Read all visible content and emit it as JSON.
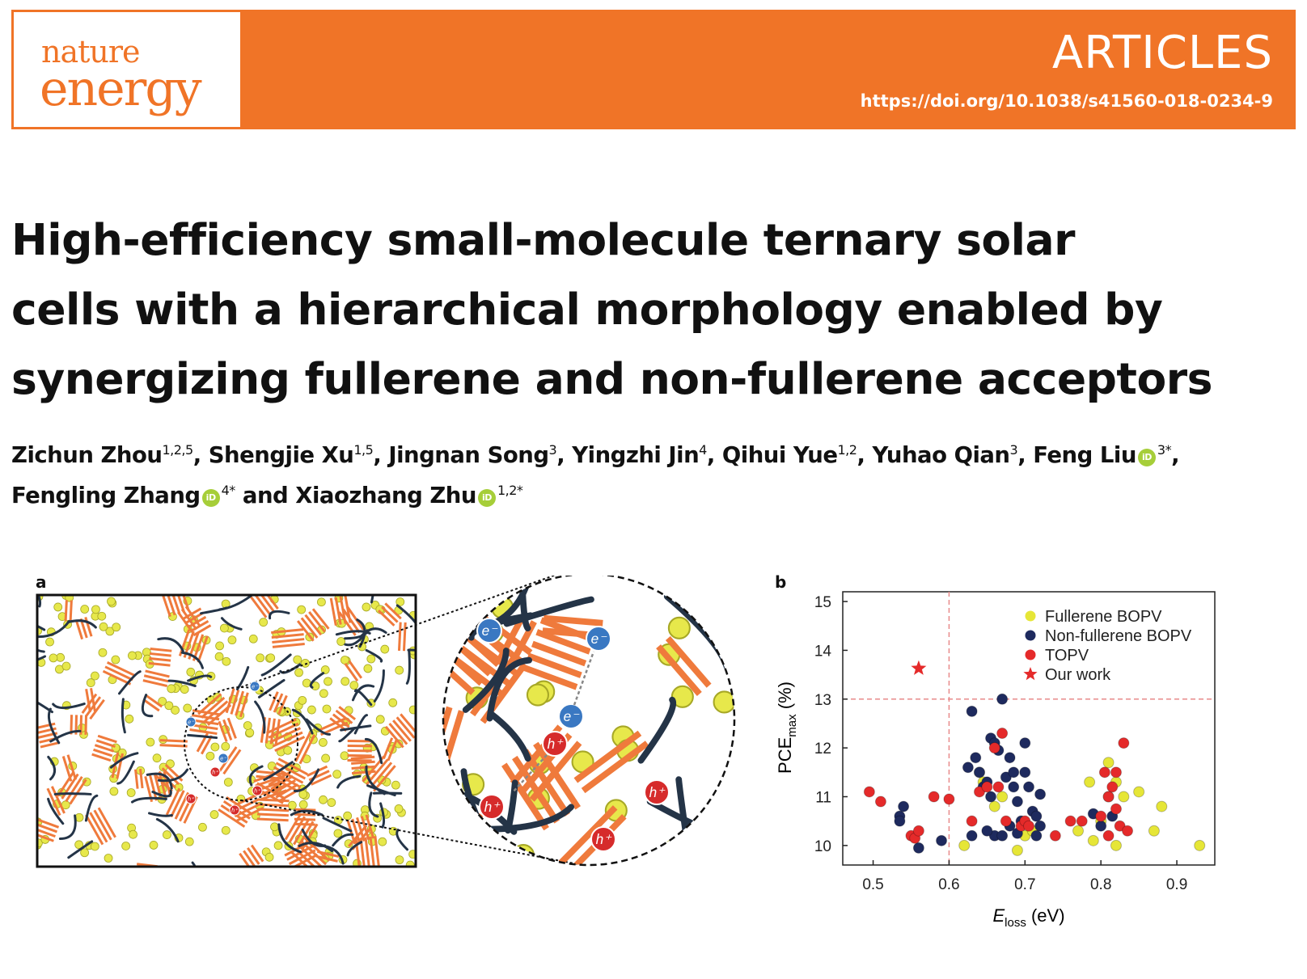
{
  "header": {
    "journal_word1": "nature",
    "journal_word2": "energy",
    "section": "ARTICLES",
    "doi": "https://doi.org/10.1038/s41560-018-0234-9",
    "brand_color": "#f07427"
  },
  "title_lines": [
    "High-efficiency small-molecule ternary solar",
    "cells with a hierarchical morphology enabled by",
    "synergizing fullerene and non-fullerene acceptors"
  ],
  "authors": [
    {
      "name": "Zichun Zhou",
      "aff": "1,2,5",
      "orcid": false,
      "sep": ", "
    },
    {
      "name": "Shengjie Xu",
      "aff": "1,5",
      "orcid": false,
      "sep": ", "
    },
    {
      "name": "Jingnan Song",
      "aff": "3",
      "orcid": false,
      "sep": ", "
    },
    {
      "name": "Yingzhi Jin",
      "aff": "4",
      "orcid": false,
      "sep": ", "
    },
    {
      "name": "Qihui Yue",
      "aff": "1,2",
      "orcid": false,
      "sep": ", "
    },
    {
      "name": "Yuhao Qian",
      "aff": "3",
      "orcid": false,
      "sep": ", "
    },
    {
      "name": "Feng Liu",
      "aff": "3*",
      "orcid": true,
      "sep": ","
    },
    {
      "name": "Fengling Zhang",
      "aff": "4*",
      "orcid": true,
      "sep": " and "
    },
    {
      "name": "Xiaozhang Zhu",
      "aff": "1,2*",
      "orcid": true,
      "sep": ""
    }
  ],
  "figure": {
    "panel_a_label": "a",
    "panel_b_label": "b",
    "carrier_labels": {
      "electron": "e⁻",
      "hole": "h⁺"
    }
  },
  "chart_data": {
    "type": "scatter",
    "xlabel": "E_loss (eV)",
    "ylabel": "PCE_max (%)",
    "xlim": [
      0.46,
      0.95
    ],
    "ylim": [
      9.6,
      15.2
    ],
    "xticks": [
      "0.5",
      "0.6",
      "0.7",
      "0.8",
      "0.9"
    ],
    "yticks": [
      "10",
      "11",
      "12",
      "13",
      "14",
      "15"
    ],
    "reference_lines": {
      "x": 0.6,
      "y": 13
    },
    "legend_position": "top-right",
    "series": [
      {
        "name": "Fullerene BOPV",
        "color": "#e6e637",
        "points": [
          [
            0.62,
            10.0
          ],
          [
            0.64,
            11.5
          ],
          [
            0.645,
            11.3
          ],
          [
            0.67,
            11.0
          ],
          [
            0.69,
            9.9
          ],
          [
            0.7,
            10.2
          ],
          [
            0.71,
            10.3
          ],
          [
            0.785,
            11.3
          ],
          [
            0.79,
            10.1
          ],
          [
            0.8,
            10.5
          ],
          [
            0.81,
            11.0
          ],
          [
            0.81,
            11.7
          ],
          [
            0.82,
            10.0
          ],
          [
            0.82,
            11.3
          ],
          [
            0.85,
            11.1
          ],
          [
            0.87,
            10.3
          ],
          [
            0.88,
            10.8
          ],
          [
            0.93,
            10.0
          ],
          [
            0.77,
            10.3
          ],
          [
            0.83,
            11.0
          ],
          [
            0.66,
            10.8
          ]
        ]
      },
      {
        "name": "Non-fullerene BOPV",
        "color": "#1e2a5e",
        "points": [
          [
            0.535,
            10.6
          ],
          [
            0.535,
            10.5
          ],
          [
            0.54,
            10.8
          ],
          [
            0.56,
            9.95
          ],
          [
            0.59,
            10.1
          ],
          [
            0.625,
            11.6
          ],
          [
            0.63,
            12.75
          ],
          [
            0.635,
            11.8
          ],
          [
            0.64,
            11.5
          ],
          [
            0.645,
            11.2
          ],
          [
            0.65,
            11.3
          ],
          [
            0.655,
            12.2
          ],
          [
            0.66,
            12.1
          ],
          [
            0.665,
            11.95
          ],
          [
            0.67,
            13.0
          ],
          [
            0.675,
            11.4
          ],
          [
            0.68,
            11.8
          ],
          [
            0.685,
            11.5
          ],
          [
            0.685,
            11.2
          ],
          [
            0.69,
            10.9
          ],
          [
            0.695,
            10.5
          ],
          [
            0.7,
            12.1
          ],
          [
            0.7,
            11.5
          ],
          [
            0.705,
            11.2
          ],
          [
            0.71,
            10.7
          ],
          [
            0.715,
            10.6
          ],
          [
            0.72,
            11.05
          ],
          [
            0.72,
            10.4
          ],
          [
            0.66,
            10.2
          ],
          [
            0.65,
            10.3
          ],
          [
            0.63,
            10.2
          ],
          [
            0.67,
            10.2
          ],
          [
            0.68,
            10.4
          ],
          [
            0.655,
            11.0
          ],
          [
            0.69,
            10.25
          ],
          [
            0.715,
            10.2
          ],
          [
            0.79,
            10.65
          ],
          [
            0.8,
            10.4
          ],
          [
            0.815,
            10.6
          ]
        ]
      },
      {
        "name": "TOPV",
        "color": "#e52a2a",
        "points": [
          [
            0.495,
            11.1
          ],
          [
            0.51,
            10.9
          ],
          [
            0.55,
            10.2
          ],
          [
            0.555,
            10.15
          ],
          [
            0.56,
            10.3
          ],
          [
            0.58,
            11.0
          ],
          [
            0.6,
            10.95
          ],
          [
            0.63,
            10.5
          ],
          [
            0.64,
            11.1
          ],
          [
            0.65,
            11.2
          ],
          [
            0.66,
            12.0
          ],
          [
            0.665,
            11.2
          ],
          [
            0.67,
            12.3
          ],
          [
            0.675,
            10.5
          ],
          [
            0.695,
            10.4
          ],
          [
            0.7,
            10.5
          ],
          [
            0.705,
            10.4
          ],
          [
            0.74,
            10.2
          ],
          [
            0.76,
            10.5
          ],
          [
            0.775,
            10.5
          ],
          [
            0.8,
            10.6
          ],
          [
            0.805,
            11.5
          ],
          [
            0.81,
            10.2
          ],
          [
            0.815,
            11.2
          ],
          [
            0.82,
            10.75
          ],
          [
            0.825,
            10.4
          ],
          [
            0.83,
            12.1
          ],
          [
            0.835,
            10.3
          ],
          [
            0.81,
            11.0
          ],
          [
            0.82,
            11.5
          ]
        ]
      },
      {
        "name": "Our work",
        "color": "#e52a2a",
        "marker": "star",
        "points": [
          [
            0.56,
            13.63
          ]
        ]
      }
    ]
  }
}
